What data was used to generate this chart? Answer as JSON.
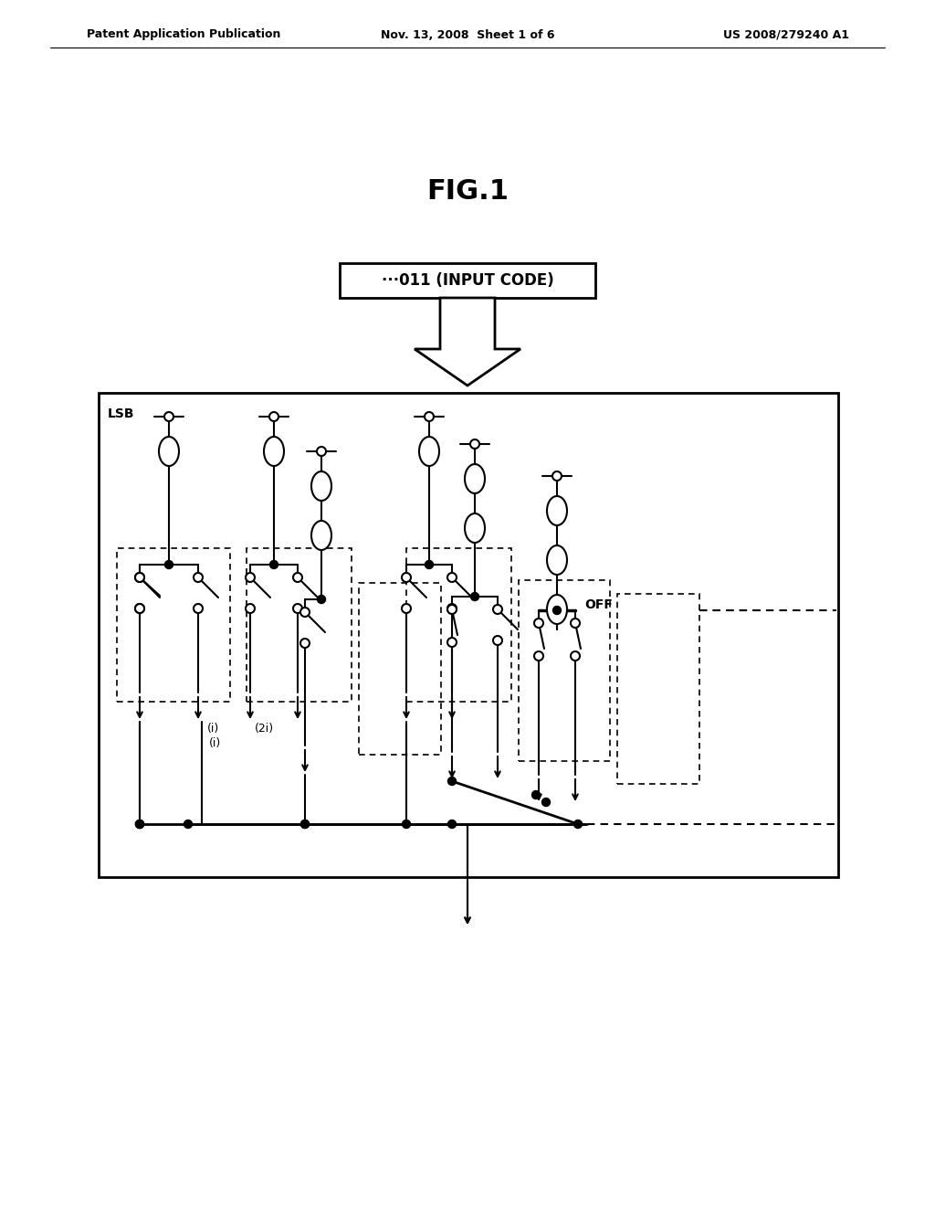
{
  "bg_color": "#ffffff",
  "fig_title": "FIG.1",
  "header_left": "Patent Application Publication",
  "header_center": "Nov. 13, 2008  Sheet 1 of 6",
  "header_right": "US 2008/279240 A1",
  "input_label": "···011 (INPUT CODE)",
  "lsb_label": "LSB",
  "i_label": "(i)",
  "two_i_label": "(2i)",
  "off_label": "OFF",
  "line_color": "#000000"
}
